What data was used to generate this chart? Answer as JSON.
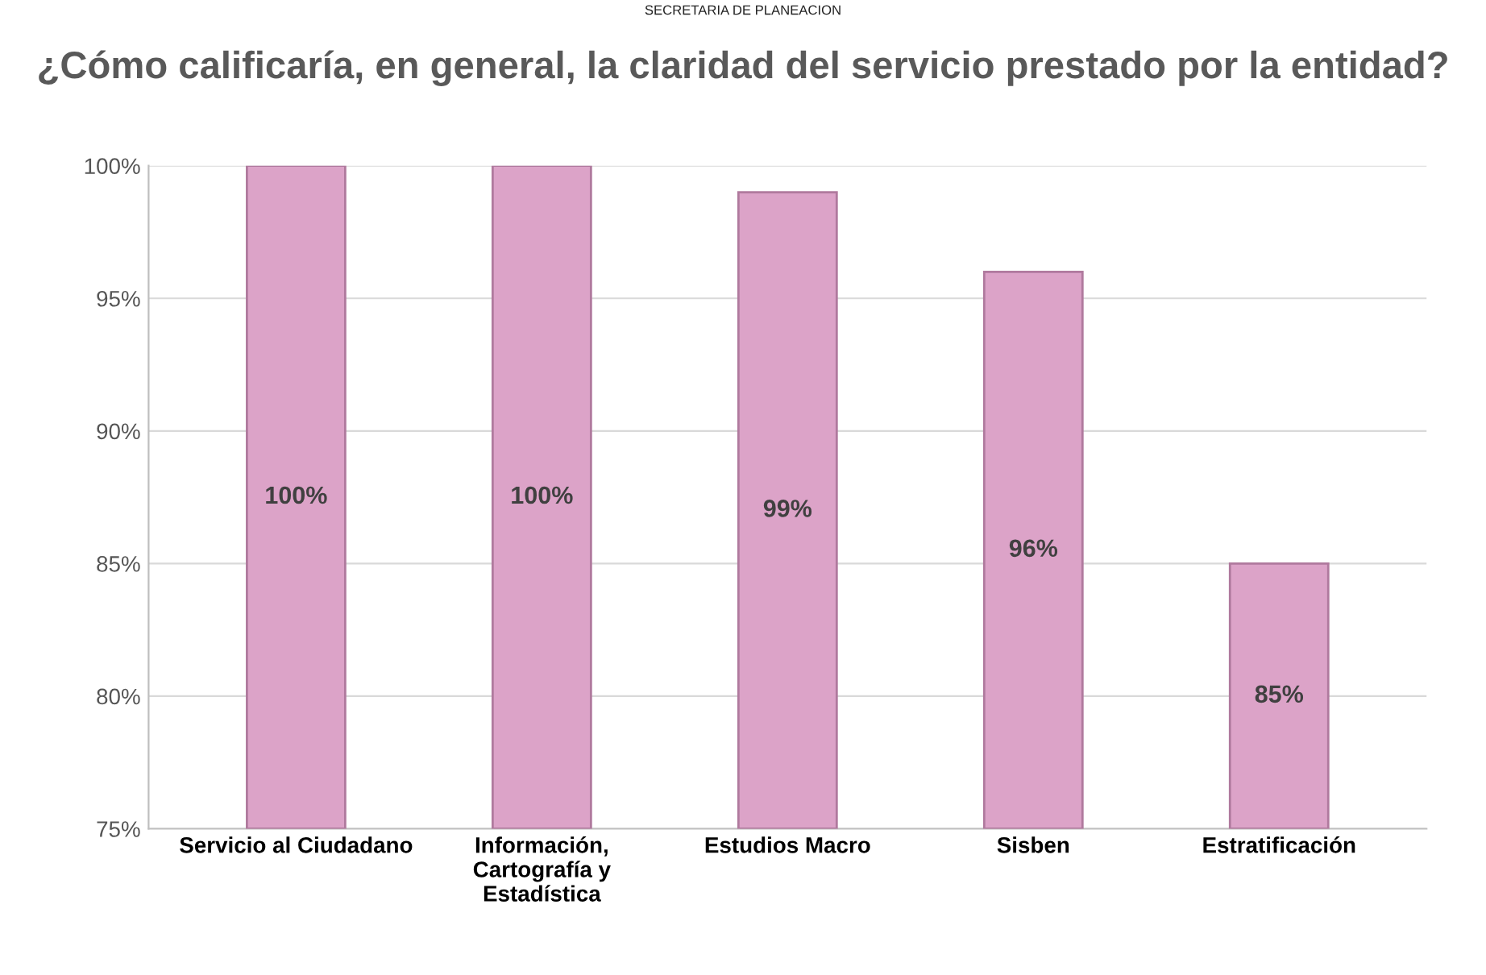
{
  "chart_data": {
    "type": "bar",
    "title": "¿Cómo calificaría, en general, la claridad del servicio prestado por la entidad?",
    "categories": [
      "Servicio al Ciudadano",
      "Información,\nCartografía y\nEstadística",
      "Estudios Macro",
      "Sisben",
      "Estratificación"
    ],
    "values": [
      100,
      100,
      99,
      96,
      85
    ],
    "value_labels": [
      "100%",
      "100%",
      "99%",
      "96%",
      "85%"
    ],
    "color": "#dca3c8",
    "ylim": [
      75,
      100
    ],
    "yticks": [
      {
        "value": 75,
        "label": "75%"
      },
      {
        "value": 80,
        "label": "80%"
      },
      {
        "value": 85,
        "label": "85%"
      },
      {
        "value": 90,
        "label": "90%"
      },
      {
        "value": 95,
        "label": "95%"
      },
      {
        "value": 100,
        "label": "100%"
      }
    ],
    "grid": "y",
    "annotations": [
      "SECRETARIA DE PLANEACION"
    ]
  }
}
